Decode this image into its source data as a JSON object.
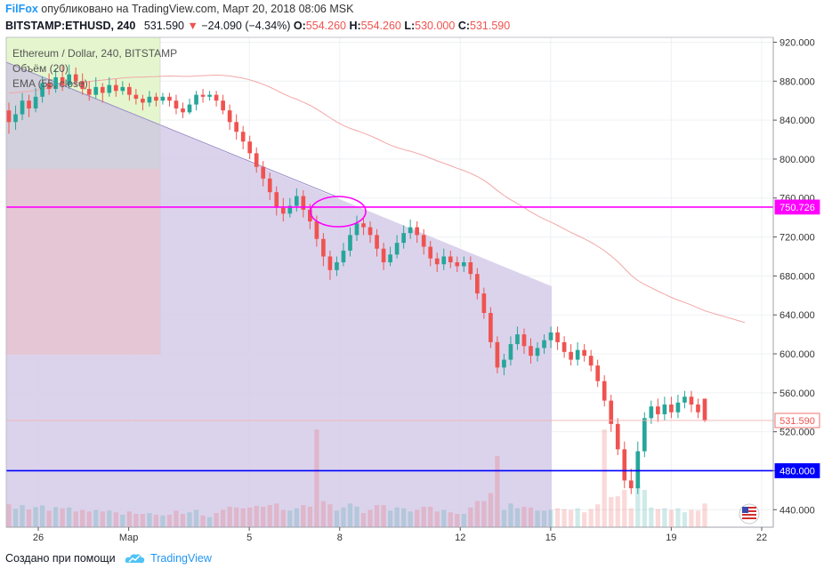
{
  "header": {
    "brand": "FilFox",
    "published": "опубликовано на TradingView.com, Март 20, 2018 08:06 MSK",
    "symbol": "BITSTAMP:ETHUSD, 240",
    "last": "531.590",
    "change": "−24.090 (−4.34%)",
    "o_label": "O:",
    "o_value": "554.260",
    "h_label": "H:",
    "h_value": "554.260",
    "l_label": "L:",
    "l_value": "530.000",
    "c_label": "C:",
    "c_value": "531.590"
  },
  "legend": {
    "line1": "Ethereum / Dollar, 240, BITSTAMP",
    "line2": "Объём (20)",
    "line3": "EMA (55, close)"
  },
  "footer": {
    "created": "Создано при помощи",
    "tv": "TradingView"
  },
  "colors": {
    "up": "#26a69a",
    "down": "#ef5350",
    "magenta": "#ff00ff",
    "blue": "#0000ff",
    "grid": "#eef0f3",
    "fib_purple": "#d5cbe9",
    "fib_pink": "#e6c3d0",
    "fib_green": "#e2f5c9"
  },
  "chart_data": {
    "type": "candlestick",
    "y_axis": {
      "ticks": [
        "440.000",
        "480.000",
        "520.000",
        "560.000",
        "600.000",
        "640.000",
        "680.000",
        "720.000",
        "760.000",
        "800.000",
        "840.000",
        "880.000",
        "920.000"
      ],
      "range": [
        422,
        925
      ]
    },
    "x_axis": {
      "ticks": [
        {
          "label": "26",
          "day": 26
        },
        {
          "label": "Мар",
          "day": 29
        },
        {
          "label": "5",
          "day": 33
        },
        {
          "label": "8",
          "day": 36
        },
        {
          "label": "12",
          "day": 40
        },
        {
          "label": "15",
          "day": 43
        },
        {
          "label": "19",
          "day": 47
        },
        {
          "label": "22",
          "day": 50
        }
      ]
    },
    "price_labels": {
      "magenta": "750.726",
      "current": "531.590",
      "blue": "480.000"
    },
    "levels": {
      "magenta": 750.726,
      "current": 531.59,
      "blue": 480.0
    },
    "candles": [
      [
        850,
        838,
        858,
        826
      ],
      [
        838,
        846,
        855,
        830
      ],
      [
        846,
        860,
        868,
        840
      ],
      [
        860,
        852,
        866,
        843
      ],
      [
        852,
        864,
        873,
        848
      ],
      [
        864,
        878,
        885,
        858
      ],
      [
        878,
        872,
        888,
        866
      ],
      [
        872,
        884,
        893,
        868
      ],
      [
        884,
        876,
        896,
        870
      ],
      [
        876,
        887,
        897,
        872
      ],
      [
        887,
        880,
        894,
        875
      ],
      [
        880,
        872,
        888,
        866
      ],
      [
        872,
        866,
        880,
        860
      ],
      [
        866,
        874,
        884,
        862
      ],
      [
        874,
        868,
        878,
        858
      ],
      [
        868,
        876,
        884,
        864
      ],
      [
        876,
        870,
        882,
        864
      ],
      [
        870,
        874,
        880,
        866
      ],
      [
        874,
        866,
        878,
        860
      ],
      [
        866,
        862,
        872,
        856
      ],
      [
        862,
        858,
        866,
        850
      ],
      [
        858,
        864,
        870,
        854
      ],
      [
        864,
        860,
        868,
        854
      ],
      [
        860,
        864,
        868,
        856
      ],
      [
        864,
        860,
        868,
        854
      ],
      [
        860,
        852,
        866,
        846
      ],
      [
        852,
        848,
        858,
        842
      ],
      [
        848,
        856,
        862,
        846
      ],
      [
        856,
        866,
        870,
        850
      ],
      [
        866,
        864,
        872,
        858
      ],
      [
        864,
        866,
        870,
        860
      ],
      [
        866,
        860,
        870,
        854
      ],
      [
        860,
        850,
        866,
        846
      ],
      [
        850,
        838,
        856,
        830
      ],
      [
        838,
        828,
        846,
        820
      ],
      [
        828,
        818,
        834,
        810
      ],
      [
        818,
        806,
        824,
        800
      ],
      [
        806,
        792,
        812,
        786
      ],
      [
        792,
        780,
        798,
        772
      ],
      [
        780,
        766,
        786,
        758
      ],
      [
        766,
        750,
        772,
        742
      ],
      [
        750,
        744,
        760,
        736
      ],
      [
        744,
        752,
        760,
        740
      ],
      [
        752,
        762,
        770,
        746
      ],
      [
        762,
        748,
        768,
        740
      ],
      [
        748,
        736,
        754,
        728
      ],
      [
        736,
        718,
        742,
        710
      ],
      [
        718,
        700,
        724,
        690
      ],
      [
        700,
        686,
        706,
        676
      ],
      [
        686,
        694,
        700,
        680
      ],
      [
        694,
        706,
        714,
        690
      ],
      [
        706,
        722,
        730,
        700
      ],
      [
        722,
        734,
        742,
        716
      ],
      [
        734,
        730,
        740,
        722
      ],
      [
        730,
        722,
        736,
        714
      ],
      [
        722,
        708,
        728,
        700
      ],
      [
        708,
        694,
        714,
        686
      ],
      [
        694,
        702,
        710,
        690
      ],
      [
        702,
        714,
        722,
        698
      ],
      [
        714,
        724,
        732,
        708
      ],
      [
        724,
        730,
        738,
        718
      ],
      [
        730,
        722,
        736,
        714
      ],
      [
        722,
        710,
        728,
        702
      ],
      [
        710,
        698,
        716,
        690
      ],
      [
        698,
        692,
        704,
        684
      ],
      [
        692,
        700,
        708,
        686
      ],
      [
        700,
        694,
        706,
        688
      ],
      [
        694,
        690,
        700,
        684
      ],
      [
        690,
        694,
        700,
        684
      ],
      [
        694,
        682,
        700,
        676
      ],
      [
        682,
        662,
        688,
        656
      ],
      [
        662,
        642,
        668,
        636
      ],
      [
        642,
        612,
        648,
        606
      ],
      [
        612,
        586,
        618,
        580
      ],
      [
        586,
        594,
        600,
        578
      ],
      [
        594,
        610,
        618,
        588
      ],
      [
        610,
        620,
        628,
        604
      ],
      [
        620,
        608,
        626,
        600
      ],
      [
        608,
        598,
        616,
        590
      ],
      [
        598,
        606,
        612,
        592
      ],
      [
        606,
        614,
        620,
        600
      ],
      [
        614,
        622,
        628,
        606
      ],
      [
        622,
        612,
        628,
        604
      ],
      [
        612,
        602,
        618,
        596
      ],
      [
        602,
        594,
        610,
        588
      ],
      [
        594,
        604,
        612,
        588
      ],
      [
        604,
        598,
        610,
        592
      ],
      [
        598,
        588,
        604,
        582
      ],
      [
        588,
        572,
        594,
        566
      ],
      [
        572,
        552,
        578,
        546
      ],
      [
        552,
        528,
        558,
        520
      ],
      [
        528,
        502,
        534,
        496
      ],
      [
        502,
        470,
        510,
        462
      ],
      [
        470,
        462,
        482,
        456
      ],
      [
        462,
        500,
        510,
        456
      ],
      [
        500,
        534,
        540,
        494
      ],
      [
        534,
        546,
        552,
        528
      ],
      [
        546,
        538,
        554,
        530
      ],
      [
        538,
        548,
        556,
        532
      ],
      [
        548,
        540,
        556,
        534
      ],
      [
        540,
        550,
        558,
        534
      ],
      [
        550,
        556,
        562,
        544
      ],
      [
        556,
        548,
        562,
        540
      ],
      [
        548,
        540,
        554,
        534
      ],
      [
        554,
        532,
        554,
        530
      ]
    ]
  }
}
